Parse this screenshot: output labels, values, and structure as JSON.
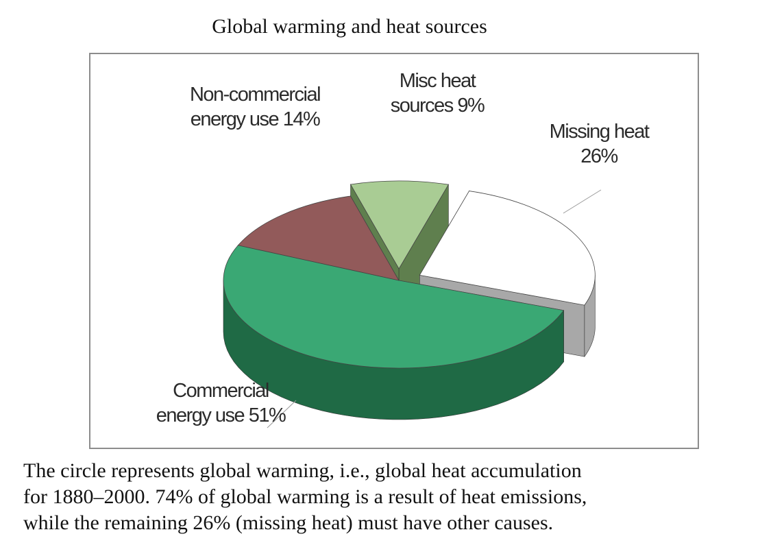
{
  "chart_data": {
    "type": "pie",
    "title": "Global warming and heat sources",
    "slices": [
      {
        "name": "Commercial energy use",
        "value": 51,
        "label_lines": [
          "Commercial",
          "energy use 51%"
        ],
        "top_color": "#3aa874",
        "side_color": "#1f6a45",
        "exploded": false
      },
      {
        "name": "Non-commercial energy use",
        "value": 14,
        "label_lines": [
          "Non-commercial",
          "energy use 14%"
        ],
        "top_color": "#925a5a",
        "side_color": "#5a2e2e",
        "exploded": false
      },
      {
        "name": "Misc heat sources",
        "value": 9,
        "label_lines": [
          "Misc heat",
          "sources 9%"
        ],
        "top_color": "#a9cc94",
        "side_color": "#5f7f4e",
        "exploded": true
      },
      {
        "name": "Missing heat",
        "value": 26,
        "label_lines": [
          "Missing heat",
          "26%"
        ],
        "top_color": "#ffffff",
        "side_color": "#a8a8a8",
        "exploded": true
      }
    ]
  },
  "caption": {
    "line1": "The circle represents  global warming, i.e., global heat accumulation",
    "line2": "for 1880–2000.  74% of global warming is a result of heat emissions,",
    "line3": "while the remaining 26% (missing heat) must have other causes."
  }
}
